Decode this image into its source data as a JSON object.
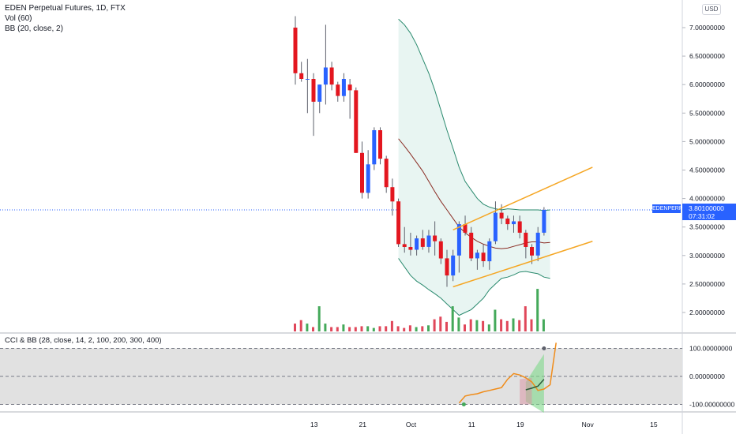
{
  "header": {
    "title": "EDEN Perpetual Futures, 1D, FTX",
    "vol": "Vol (60)",
    "bb": "BB (20, close, 2)"
  },
  "currency": "USD",
  "price_tag": {
    "symbol": "EDENPERP",
    "price": "3.80100000",
    "countdown": "07:31:02"
  },
  "colors": {
    "up": "#2962ff",
    "down": "#e3161f",
    "ma": "#8a2c23",
    "band": "#2a8a6e",
    "fill": "#e8f5f2",
    "channel": "#f5a623",
    "vol_up": "#44a95a",
    "vol_down": "#e0475a",
    "cci": "#f08c1a",
    "cci_bg": "#e1e1e1"
  },
  "cci_legend": "CCI & BB (28, close, 14, 2, 100, 200, 300, 400)",
  "chart_data": [
    {
      "type": "candlestick",
      "title": "EDEN Perpetual Futures, 1D, FTX",
      "x_ticks": [
        "13",
        "21",
        "Oct",
        "11",
        "19",
        "Nov",
        "15"
      ],
      "y_ticks": [
        "7.00000000",
        "6.50000000",
        "6.00000000",
        "5.50000000",
        "5.00000000",
        "4.50000000",
        "4.00000000",
        "3.50000000",
        "3.00000000",
        "2.50000000",
        "2.00000000"
      ],
      "ylim": [
        1.7,
        7.4
      ],
      "last_price": 3.801,
      "candles": [
        {
          "o": 7.0,
          "h": 7.2,
          "l": 6.0,
          "c": 6.2
        },
        {
          "o": 6.2,
          "h": 6.4,
          "l": 6.05,
          "c": 6.1
        },
        {
          "o": 6.1,
          "h": 6.45,
          "l": 5.5,
          "c": 6.1
        },
        {
          "o": 6.1,
          "h": 6.2,
          "l": 5.1,
          "c": 5.7
        },
        {
          "o": 5.7,
          "h": 6.0,
          "l": 5.5,
          "c": 6.0
        },
        {
          "o": 6.0,
          "h": 7.05,
          "l": 5.65,
          "c": 6.3
        },
        {
          "o": 6.3,
          "h": 6.4,
          "l": 5.9,
          "c": 6.0
        },
        {
          "o": 6.0,
          "h": 6.05,
          "l": 5.7,
          "c": 5.8
        },
        {
          "o": 5.8,
          "h": 6.2,
          "l": 5.7,
          "c": 6.1
        },
        {
          "o": 6.0,
          "h": 6.1,
          "l": 5.4,
          "c": 5.9
        },
        {
          "o": 5.9,
          "h": 5.95,
          "l": 4.8,
          "c": 4.8
        },
        {
          "o": 4.8,
          "h": 5.0,
          "l": 4.0,
          "c": 4.1
        },
        {
          "o": 4.1,
          "h": 4.85,
          "l": 4.0,
          "c": 4.6
        },
        {
          "o": 4.6,
          "h": 5.25,
          "l": 4.5,
          "c": 5.2
        },
        {
          "o": 5.2,
          "h": 5.25,
          "l": 4.6,
          "c": 4.7
        },
        {
          "o": 4.7,
          "h": 4.75,
          "l": 4.1,
          "c": 4.2
        },
        {
          "o": 4.2,
          "h": 4.35,
          "l": 3.7,
          "c": 3.95
        },
        {
          "o": 3.95,
          "h": 4.0,
          "l": 3.15,
          "c": 3.2
        },
        {
          "o": 3.2,
          "h": 3.5,
          "l": 3.05,
          "c": 3.15
        },
        {
          "o": 3.15,
          "h": 3.4,
          "l": 3.0,
          "c": 3.1
        },
        {
          "o": 3.1,
          "h": 3.35,
          "l": 3.0,
          "c": 3.3
        },
        {
          "o": 3.3,
          "h": 3.45,
          "l": 3.1,
          "c": 3.15
        },
        {
          "o": 3.15,
          "h": 3.45,
          "l": 3.05,
          "c": 3.35
        },
        {
          "o": 3.35,
          "h": 3.6,
          "l": 3.0,
          "c": 3.25
        },
        {
          "o": 3.25,
          "h": 3.3,
          "l": 2.85,
          "c": 2.95
        },
        {
          "o": 2.95,
          "h": 3.1,
          "l": 2.45,
          "c": 2.65
        },
        {
          "o": 2.65,
          "h": 3.1,
          "l": 2.55,
          "c": 3.0
        },
        {
          "o": 3.0,
          "h": 3.6,
          "l": 2.7,
          "c": 3.55
        },
        {
          "o": 3.55,
          "h": 3.7,
          "l": 3.35,
          "c": 3.4
        },
        {
          "o": 3.4,
          "h": 3.5,
          "l": 2.9,
          "c": 2.95
        },
        {
          "o": 2.95,
          "h": 3.1,
          "l": 2.75,
          "c": 3.05
        },
        {
          "o": 3.05,
          "h": 3.2,
          "l": 2.8,
          "c": 2.9
        },
        {
          "o": 2.9,
          "h": 3.3,
          "l": 2.75,
          "c": 3.25
        },
        {
          "o": 3.25,
          "h": 3.95,
          "l": 3.2,
          "c": 3.75
        },
        {
          "o": 3.75,
          "h": 3.9,
          "l": 3.55,
          "c": 3.65
        },
        {
          "o": 3.65,
          "h": 3.7,
          "l": 3.45,
          "c": 3.55
        },
        {
          "o": 3.55,
          "h": 3.7,
          "l": 3.4,
          "c": 3.6
        },
        {
          "o": 3.6,
          "h": 3.7,
          "l": 3.3,
          "c": 3.4
        },
        {
          "o": 3.4,
          "h": 3.45,
          "l": 2.95,
          "c": 3.15
        },
        {
          "o": 3.15,
          "h": 3.2,
          "l": 2.85,
          "c": 3.0
        },
        {
          "o": 3.0,
          "h": 3.5,
          "l": 2.9,
          "c": 3.4
        },
        {
          "o": 3.4,
          "h": 3.85,
          "l": 3.35,
          "c": 3.8
        }
      ],
      "volumes": [
        0.09,
        0.13,
        0.09,
        0.05,
        0.29,
        0.09,
        0.05,
        0.05,
        0.08,
        0.05,
        0.05,
        0.06,
        0.06,
        0.04,
        0.06,
        0.06,
        0.12,
        0.06,
        0.04,
        0.07,
        0.05,
        0.06,
        0.07,
        0.14,
        0.17,
        0.11,
        0.29,
        0.16,
        0.08,
        0.14,
        0.13,
        0.12,
        0.08,
        0.25,
        0.14,
        0.12,
        0.15,
        0.13,
        0.29,
        0.14,
        0.49,
        0.14
      ],
      "volume_up": [
        false,
        false,
        true,
        false,
        true,
        true,
        false,
        false,
        true,
        false,
        false,
        false,
        true,
        true,
        false,
        false,
        false,
        false,
        false,
        false,
        true,
        false,
        true,
        false,
        false,
        false,
        true,
        true,
        false,
        false,
        true,
        false,
        true,
        true,
        false,
        false,
        true,
        false,
        false,
        false,
        true,
        true
      ],
      "bb_mid": {
        "start_index": 17,
        "values": [
          5.05,
          4.92,
          4.78,
          4.63,
          4.48,
          4.3,
          4.12,
          3.95,
          3.8,
          3.65,
          3.5,
          3.4,
          3.32,
          3.25,
          3.2,
          3.16,
          3.13,
          3.12,
          3.13,
          3.16,
          3.19,
          3.22,
          3.24,
          3.24,
          3.22,
          3.23
        ]
      },
      "bb_upper": {
        "start_index": 17,
        "values": [
          7.15,
          7.05,
          6.9,
          6.7,
          6.45,
          6.2,
          5.9,
          5.55,
          5.2,
          4.88,
          4.55,
          4.3,
          4.15,
          4.0,
          3.9,
          3.85,
          3.82,
          3.8,
          3.82,
          3.81,
          3.8,
          3.8,
          3.8,
          3.8,
          3.79,
          3.8
        ]
      },
      "bb_lower": {
        "start_index": 17,
        "values": [
          2.95,
          2.8,
          2.65,
          2.55,
          2.48,
          2.4,
          2.33,
          2.25,
          2.15,
          2.05,
          1.95,
          2.0,
          2.05,
          2.15,
          2.25,
          2.4,
          2.5,
          2.6,
          2.62,
          2.66,
          2.71,
          2.72,
          2.7,
          2.68,
          2.62,
          2.6
        ]
      },
      "channel_upper": {
        "x": [
          26,
          49
        ],
        "y": [
          3.45,
          4.55
        ]
      },
      "channel_lower": {
        "x": [
          26,
          49
        ],
        "y": [
          2.45,
          3.25
        ]
      }
    },
    {
      "type": "line",
      "title": "CCI & BB (28, close, 14, 2, 100, 200, 300, 400)",
      "y_ticks": [
        "100.00000000",
        "0.00000000",
        "-100.00000000"
      ],
      "ylim": [
        -135,
        135
      ],
      "levels": [
        100,
        0,
        -100
      ],
      "cci": {
        "start_index": 27,
        "values": [
          -95,
          -70,
          -65,
          -62,
          -55,
          -50,
          -45,
          -40,
          -10,
          10,
          5,
          -5,
          -20,
          -50,
          -45,
          -30,
          120
        ]
      },
      "cci_ma": {
        "start_index": 38,
        "values": [
          -48,
          -42,
          -35,
          -10
        ]
      },
      "dot_low": {
        "index": 27,
        "value": -100
      },
      "dot_high": {
        "index": 41,
        "value": 100
      }
    }
  ]
}
